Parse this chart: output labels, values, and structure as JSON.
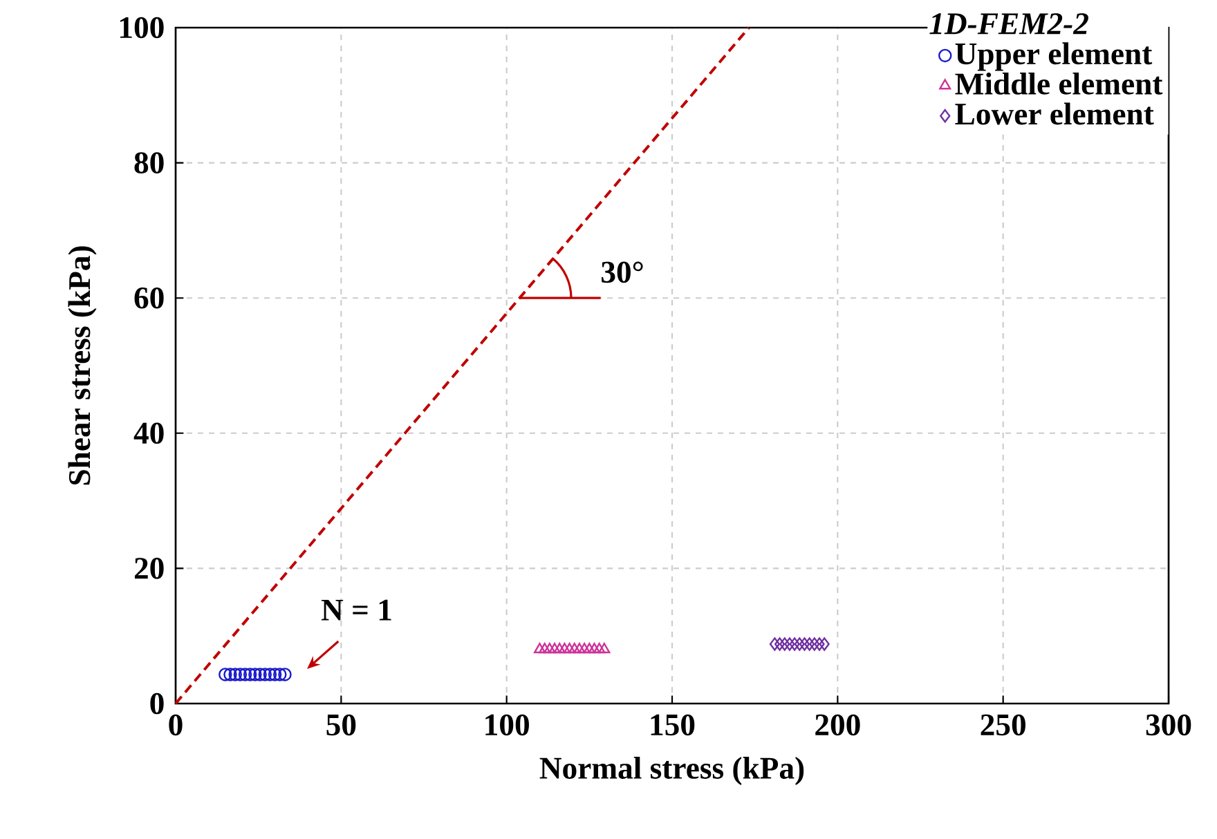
{
  "chart_data": {
    "type": "scatter",
    "xlabel": "Normal stress (kPa)",
    "ylabel": "Shear stress (kPa)",
    "legend_title": "1D-FEM2-2",
    "legend": "top right",
    "grid": true,
    "xlim": [
      0,
      300
    ],
    "ylim": [
      0,
      100
    ],
    "xticks": [
      0,
      50,
      100,
      150,
      200,
      250,
      300
    ],
    "yticks": [
      0,
      20,
      40,
      60,
      80,
      100
    ],
    "series": [
      {
        "name": "Upper element",
        "color": "#1a1acc",
        "marker": "circle",
        "x": [
          15,
          16.5,
          18,
          19.5,
          21,
          22.5,
          24,
          25.5,
          27,
          28.5,
          30,
          31.5,
          33
        ],
        "values": [
          4.3,
          4.3,
          4.3,
          4.3,
          4.3,
          4.3,
          4.3,
          4.3,
          4.3,
          4.3,
          4.3,
          4.3,
          4.3
        ]
      },
      {
        "name": "Middle element",
        "color": "#cc3399",
        "marker": "triangle",
        "x": [
          110,
          111.5,
          113,
          114.5,
          116,
          117.5,
          119,
          120.5,
          122,
          123.5,
          125,
          126.5,
          128,
          129.5
        ],
        "values": [
          8,
          8,
          8,
          8,
          8,
          8,
          8,
          8,
          8,
          8,
          8,
          8,
          8,
          8
        ]
      },
      {
        "name": "Lower element",
        "color": "#7030a0",
        "marker": "diamond",
        "x": [
          181,
          182.5,
          184,
          185.5,
          187,
          188.5,
          190,
          191.5,
          193,
          194.5,
          196
        ],
        "values": [
          8.8,
          8.8,
          8.8,
          8.8,
          8.8,
          8.8,
          8.8,
          8.8,
          8.8,
          8.8,
          8.8
        ]
      },
      {
        "type": "line",
        "color": "#c00000",
        "marker": "none",
        "line_style": "dashed",
        "x": [
          0,
          173.2
        ],
        "values": [
          0,
          100
        ]
      }
    ],
    "annotations": [
      {
        "text": "30°",
        "x": 103.9,
        "y": 60
      },
      {
        "text": "N = 1",
        "x": 33,
        "y": 4.3
      }
    ]
  }
}
